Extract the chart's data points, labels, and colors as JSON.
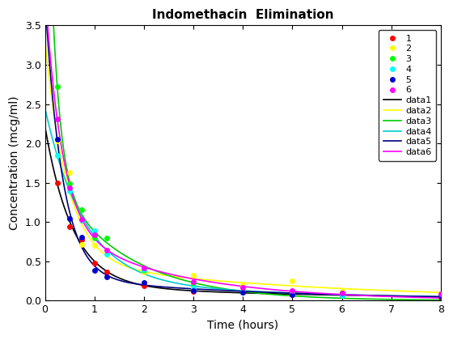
{
  "title": "Indomethacin  Elimination",
  "xlabel": "Time (hours)",
  "ylabel": "Concentration (mcg/ml)",
  "time_points": [
    0.25,
    0.5,
    0.75,
    1.0,
    1.25,
    2.0,
    3.0,
    4.0,
    5.0,
    6.0,
    8.0
  ],
  "subjects": {
    "1": [
      1.5,
      0.94,
      0.78,
      0.48,
      0.37,
      0.19,
      0.12,
      0.11,
      0.08,
      0.07,
      0.05
    ],
    "2": [
      2.03,
      1.63,
      0.71,
      0.7,
      0.64,
      0.36,
      0.32,
      0.2,
      0.25,
      0.12,
      0.08
    ],
    "3": [
      2.72,
      1.49,
      1.16,
      0.8,
      0.8,
      0.39,
      0.22,
      0.12,
      0.11,
      0.08,
      0.08
    ],
    "4": [
      1.85,
      1.39,
      1.02,
      0.89,
      0.59,
      0.4,
      0.16,
      0.11,
      0.1,
      0.07,
      0.07
    ],
    "5": [
      2.05,
      1.04,
      0.81,
      0.39,
      0.3,
      0.23,
      0.13,
      0.11,
      0.08,
      0.1,
      0.06
    ],
    "6": [
      2.31,
      1.44,
      1.03,
      0.84,
      0.64,
      0.42,
      0.24,
      0.17,
      0.13,
      0.1,
      0.09
    ]
  },
  "marker_colors": {
    "1": "#ff0000",
    "2": "#ffff00",
    "3": "#00ff00",
    "4": "#00ffff",
    "5": "#0000cc",
    "6": "#ff00ff"
  },
  "line_colors": {
    "1": "#000000",
    "2": "#ffff00",
    "3": "#00cc00",
    "4": "#00cccc",
    "5": "#000080",
    "6": "#ff00ff"
  },
  "ylim": [
    0,
    3.5
  ],
  "xlim": [
    0,
    8
  ],
  "yticks": [
    0.0,
    0.5,
    1.0,
    1.5,
    2.0,
    2.5,
    3.0,
    3.5
  ],
  "xticks": [
    0,
    1,
    2,
    3,
    4,
    5,
    6,
    7,
    8
  ],
  "marker_size": 5,
  "line_width": 1.2,
  "figsize": [
    5.6,
    4.2
  ],
  "dpi": 100
}
